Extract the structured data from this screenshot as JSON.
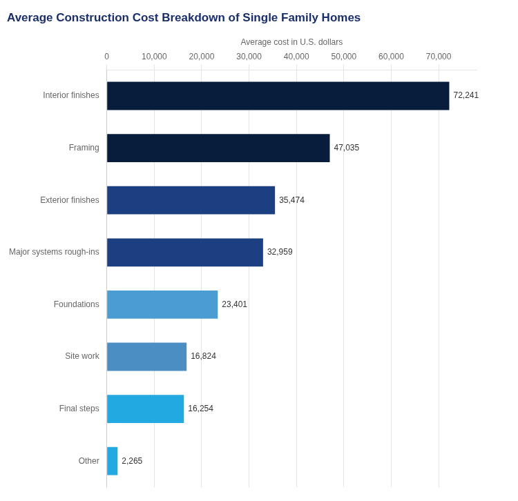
{
  "chart_data": {
    "type": "bar",
    "orientation": "horizontal",
    "title": "Average Construction Cost Breakdown of Single Family Homes",
    "xlabel": "Average cost in U.S. dollars",
    "categories": [
      "Interior finishes",
      "Framing",
      "Exterior finishes",
      "Major systems rough-ins",
      "Foundations",
      "Site work",
      "Final steps",
      "Other"
    ],
    "values": [
      72241,
      47035,
      35474,
      32959,
      23401,
      16824,
      16254,
      2265
    ],
    "value_labels": [
      "72,241",
      "47,035",
      "35,474",
      "32,959",
      "23,401",
      "16,824",
      "16,254",
      "2,265"
    ],
    "data_labels": true,
    "colors": [
      "#071d3b",
      "#071d3b",
      "#1c3f82",
      "#1c3f82",
      "#4b9cd3",
      "#4b8ec4",
      "#23a9e1",
      "#23a9e1"
    ],
    "xlim": [
      0,
      78000
    ],
    "xticks": [
      0,
      {
        "value": 10000,
        "label": "10,000"
      },
      {
        "value": 20000,
        "label": "20,000"
      },
      {
        "value": 30000,
        "label": "30,000"
      },
      {
        "value": 40000,
        "label": "40,000"
      },
      {
        "value": 50000,
        "label": "50,000"
      },
      {
        "value": 60000,
        "label": "60,000"
      },
      {
        "value": 70000,
        "label": "70,000"
      }
    ],
    "grid": true
  }
}
